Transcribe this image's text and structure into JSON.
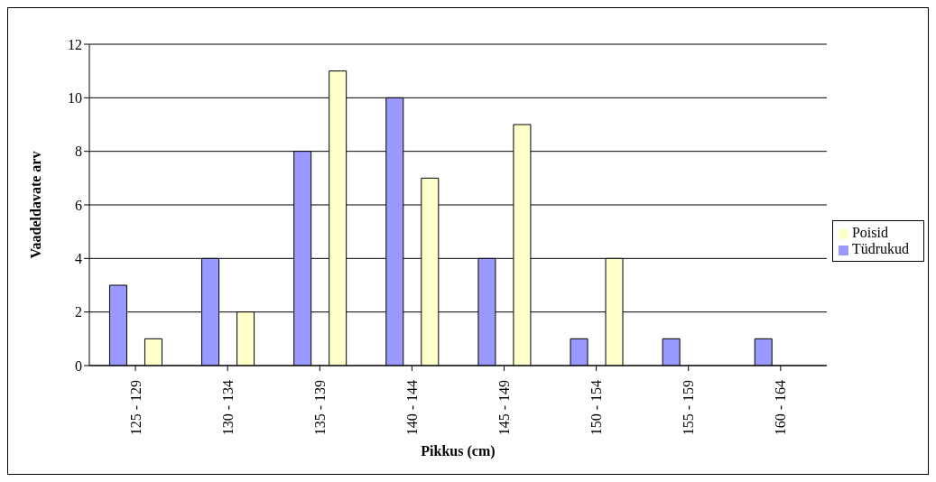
{
  "chart_data": {
    "type": "bar",
    "xlabel": "Pikkus (cm)",
    "ylabel": "Vaadeldavate arv",
    "categories": [
      "125 - 129",
      "130 - 134",
      "135 - 139",
      "140 - 144",
      "145 - 149",
      "150 - 154",
      "155 - 159",
      "160 - 164"
    ],
    "series": [
      {
        "name": "Tüdrukud",
        "color": "#9999ff",
        "values": [
          3,
          4,
          8,
          10,
          4,
          1,
          1,
          1
        ]
      },
      {
        "name": "Poisid",
        "color": "#ffffcc",
        "values": [
          1,
          2,
          11,
          7,
          9,
          4,
          0,
          0
        ]
      }
    ],
    "ylim": [
      0,
      12
    ],
    "yticks": [
      0,
      2,
      4,
      6,
      8,
      10,
      12
    ],
    "grid": "y",
    "legend": "right"
  }
}
